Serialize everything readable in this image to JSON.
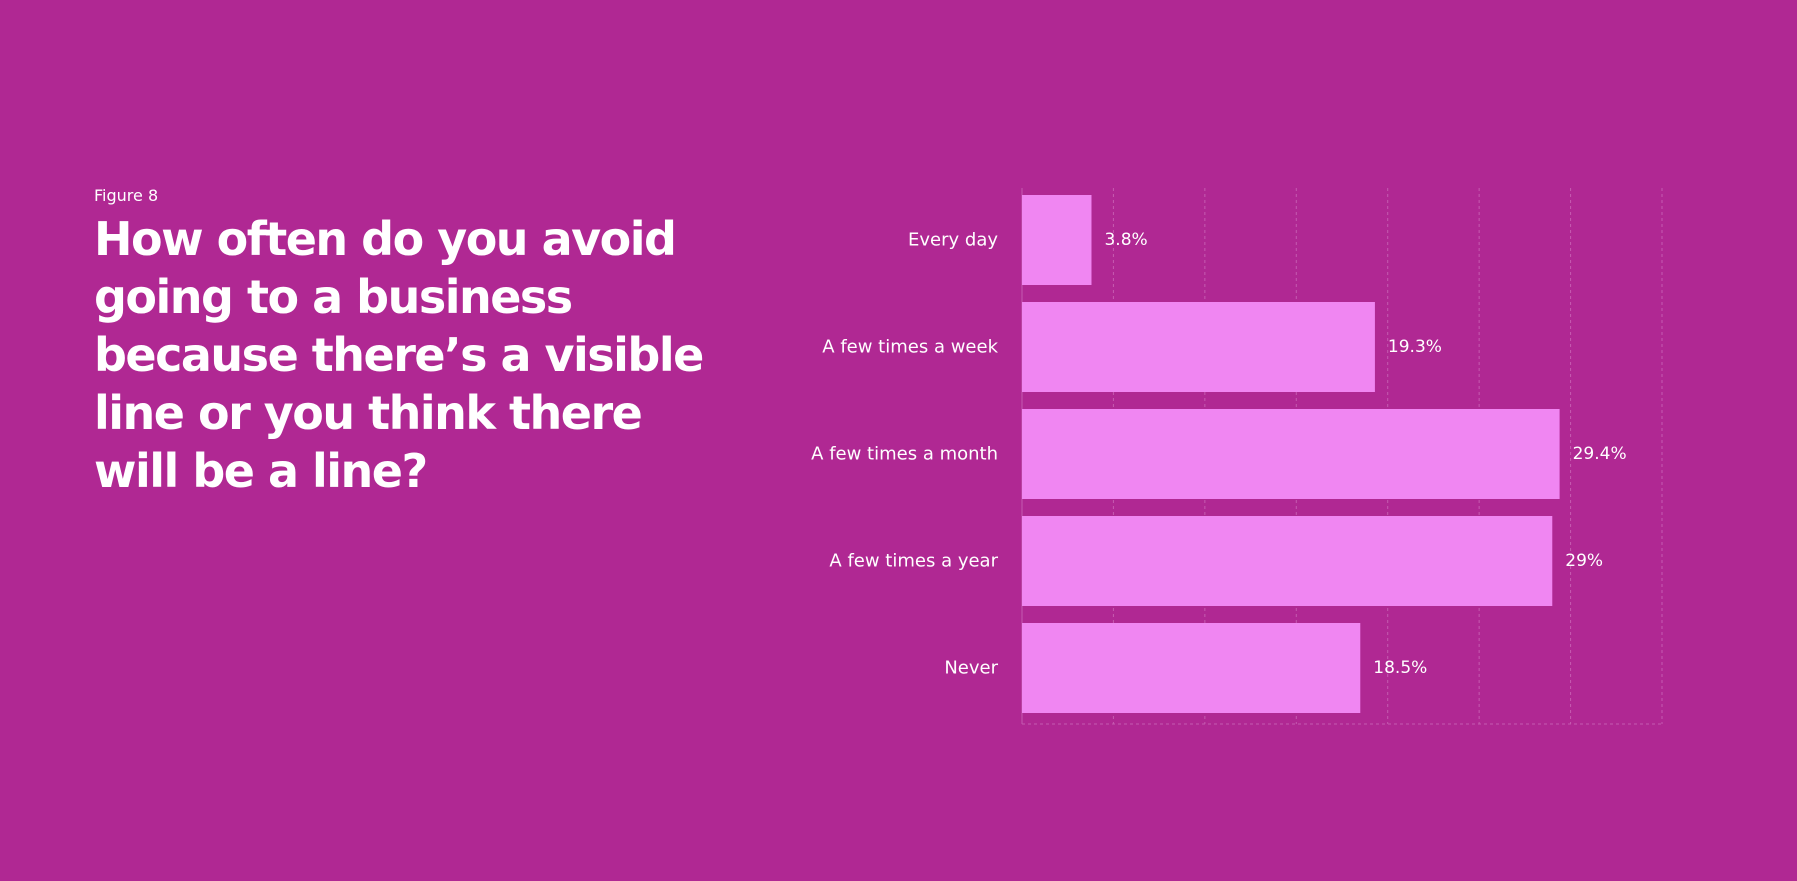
{
  "figure_label": "Figure 8",
  "title": "How often do you avoid going to a business because there’s a visible line or you think there will be a line?",
  "colors": {
    "background": "#b02893",
    "bar": "#f086f2",
    "text": "#ffffff",
    "grid": "#c55ab0"
  },
  "chart_data": {
    "type": "bar",
    "orientation": "horizontal",
    "categories": [
      "Every day",
      "A few times a week",
      "A few times a month",
      "A few times a year",
      "Never"
    ],
    "values": [
      3.8,
      19.3,
      29.4,
      29,
      18.5
    ],
    "value_labels": [
      "3.8%",
      "19.3%",
      "29.4%",
      "29%",
      "18.5%"
    ],
    "unit": "%",
    "xlim": [
      0,
      35
    ],
    "grid": true,
    "title": "How often do you avoid going to a business because there’s a visible line or you think there will be a line?"
  }
}
